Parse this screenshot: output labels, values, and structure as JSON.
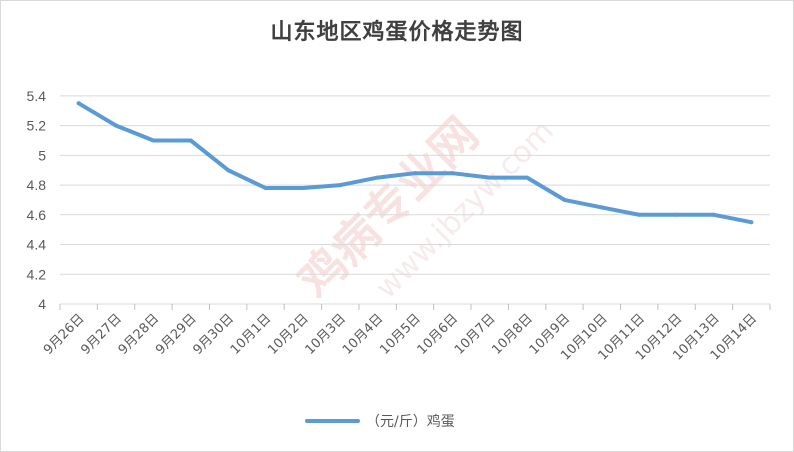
{
  "chart_data": {
    "type": "line",
    "title": "山东地区鸡蛋价格走势图",
    "categories": [
      "9月26日",
      "9月27日",
      "9月28日",
      "9月29日",
      "9月30日",
      "10月1日",
      "10月2日",
      "10月3日",
      "10月4日",
      "10月5日",
      "10月6日",
      "10月7日",
      "10月8日",
      "10月9日",
      "10月10日",
      "10月11日",
      "10月12日",
      "10月13日",
      "10月14日"
    ],
    "series": [
      {
        "name": "（元/斤）鸡蛋",
        "values": [
          5.35,
          5.2,
          5.1,
          5.1,
          4.9,
          4.78,
          4.78,
          4.8,
          4.85,
          4.88,
          4.88,
          4.85,
          4.85,
          4.7,
          4.65,
          4.6,
          4.6,
          4.6,
          4.55
        ],
        "color": "#5b9bd5"
      }
    ],
    "yticks": [
      "4",
      "4.2",
      "4.4",
      "4.6",
      "4.8",
      "5",
      "5.2",
      "5.4"
    ],
    "ylim": [
      4,
      5.5
    ],
    "grid": true,
    "legend_position": "bottom"
  },
  "watermark": {
    "main": "鸡病专业网",
    "url": "www.jbzyw.com"
  }
}
